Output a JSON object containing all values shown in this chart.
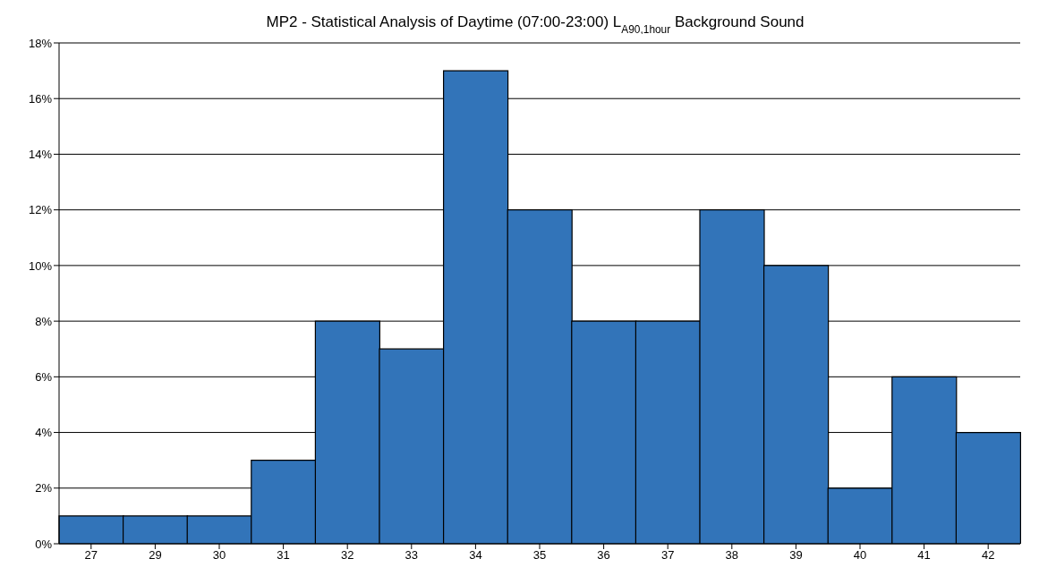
{
  "chart_data": {
    "type": "bar",
    "title": "MP2 - Statistical Analysis of Daytime (07:00-23:00) L$_{A90,1hour}$ Background Sound",
    "categories": [
      "27",
      "29",
      "30",
      "31",
      "32",
      "33",
      "34",
      "35",
      "36",
      "37",
      "38",
      "39",
      "40",
      "41",
      "42"
    ],
    "values": [
      1,
      1,
      1,
      3,
      8,
      7,
      17,
      12,
      8,
      8,
      12,
      10,
      2,
      6,
      4
    ],
    "color": "#3274b9",
    "ylim": [
      0,
      18
    ],
    "yticks": [
      {
        "value": 0,
        "label": "0%"
      },
      {
        "value": 2,
        "label": "2%"
      },
      {
        "value": 4,
        "label": "4%"
      },
      {
        "value": 6,
        "label": "6%"
      },
      {
        "value": 8,
        "label": "8%"
      },
      {
        "value": 10,
        "label": "10%"
      },
      {
        "value": 12,
        "label": "12%"
      },
      {
        "value": 14,
        "label": "14%"
      },
      {
        "value": 16,
        "label": "16%"
      },
      {
        "value": 18,
        "label": "18%"
      }
    ],
    "grid": "y",
    "legend": false
  }
}
